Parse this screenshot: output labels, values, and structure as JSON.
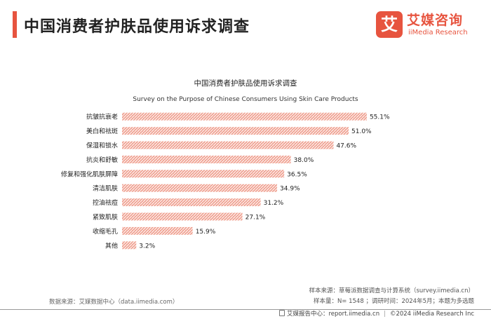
{
  "header": {
    "title": "中国消费者护肤品使用诉求调查",
    "logo_badge_char": "艾",
    "logo_cn": "艾媒咨询",
    "logo_en": "iiMedia Research"
  },
  "colors": {
    "accent": "#e7543f",
    "bar": "#f0a494",
    "bar_hatch": "#ffffff"
  },
  "chart_data": {
    "type": "bar",
    "orientation": "horizontal",
    "title": "中国消费者护肤品使用诉求调查",
    "subtitle": "Survey on the Purpose of Chinese Consumers Using Skin Care Products",
    "categories": [
      "抗皱抗衰老",
      "美白和祛斑",
      "保湿和锁水",
      "抗炎和舒敏",
      "修复和强化肌肤屏障",
      "清洁肌肤",
      "控油祛痘",
      "紧致肌肤",
      "收缩毛孔",
      "其他"
    ],
    "values": [
      55.1,
      51.0,
      47.6,
      38.0,
      36.5,
      34.9,
      31.2,
      27.1,
      15.9,
      3.2
    ],
    "value_labels": [
      "55.1%",
      "51.0%",
      "47.6%",
      "38.0%",
      "36.5%",
      "34.9%",
      "31.2%",
      "27.1%",
      "15.9%",
      "3.2%"
    ],
    "unit": "%",
    "xlim": [
      0,
      60
    ],
    "xlabel": "",
    "ylabel": ""
  },
  "footer": {
    "data_source": "数据来源：艾媒数据中心（data.iimedia.com）",
    "sample_source": "样本来源：草莓派数据调查与计算系统（survey.iimedia.cn）",
    "sample_size": "样本量：N= 1548 ；调研时间：2024年5月；本题为多选题",
    "report_center": "艾媒报告中心：report.iimedia.cn",
    "copyright": "©2024  iiMedia Research  Inc"
  }
}
